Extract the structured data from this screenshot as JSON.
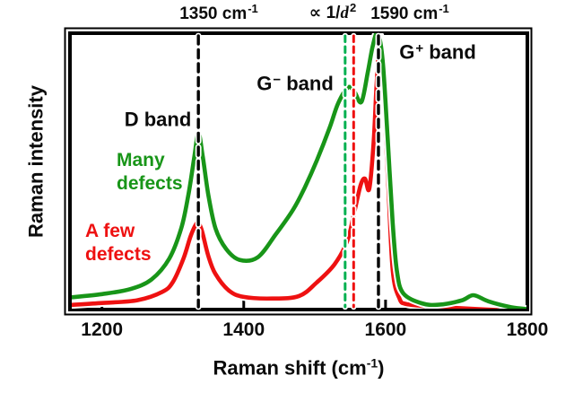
{
  "chart_data": {
    "type": "line",
    "title": "",
    "xlabel": "Raman shift (cm⁻¹)",
    "ylabel": "Raman intensity",
    "xlim": [
      1153,
      1800
    ],
    "ylim": [
      0,
      1
    ],
    "x_ticks": [
      1200,
      1400,
      1600,
      1800
    ],
    "x_tick_labels": [
      "1200",
      "1400",
      "1600",
      "1800"
    ],
    "y_ticks": [],
    "grid": false,
    "legend_position": "none (inline colored annotations)",
    "series": [
      {
        "name": "A few defects",
        "color": "#ee1111",
        "points": [
          [
            1155,
            0.023
          ],
          [
            1200,
            0.03
          ],
          [
            1250,
            0.04
          ],
          [
            1285,
            0.07
          ],
          [
            1300,
            0.105
          ],
          [
            1315,
            0.19
          ],
          [
            1325,
            0.27
          ],
          [
            1332,
            0.31
          ],
          [
            1336,
            0.318
          ],
          [
            1341,
            0.29
          ],
          [
            1350,
            0.2
          ],
          [
            1360,
            0.135
          ],
          [
            1379,
            0.075
          ],
          [
            1400,
            0.052
          ],
          [
            1440,
            0.046
          ],
          [
            1478,
            0.055
          ],
          [
            1503,
            0.104
          ],
          [
            1528,
            0.169
          ],
          [
            1546,
            0.253
          ],
          [
            1556,
            0.357
          ],
          [
            1565,
            0.455
          ],
          [
            1571,
            0.477
          ],
          [
            1577,
            0.44
          ],
          [
            1583,
            0.6
          ],
          [
            1587,
            0.8
          ],
          [
            1591,
            0.96
          ],
          [
            1593,
            0.985
          ],
          [
            1596,
            0.88
          ],
          [
            1600,
            0.65
          ],
          [
            1604,
            0.45
          ],
          [
            1610,
            0.15
          ],
          [
            1619,
            0.05
          ],
          [
            1632,
            0.025
          ],
          [
            1688,
            0.014
          ],
          [
            1764,
            0.004
          ],
          [
            1800,
            0.002
          ]
        ]
      },
      {
        "name": "Many defects",
        "color": "#189518",
        "points": [
          [
            1155,
            0.05
          ],
          [
            1200,
            0.062
          ],
          [
            1240,
            0.08
          ],
          [
            1270,
            0.115
          ],
          [
            1295,
            0.19
          ],
          [
            1312,
            0.3
          ],
          [
            1322,
            0.42
          ],
          [
            1330,
            0.55
          ],
          [
            1336,
            0.64
          ],
          [
            1342,
            0.56
          ],
          [
            1350,
            0.42
          ],
          [
            1360,
            0.3
          ],
          [
            1375,
            0.225
          ],
          [
            1394,
            0.185
          ],
          [
            1420,
            0.195
          ],
          [
            1445,
            0.276
          ],
          [
            1470,
            0.367
          ],
          [
            1486,
            0.445
          ],
          [
            1503,
            0.542
          ],
          [
            1521,
            0.659
          ],
          [
            1533,
            0.747
          ],
          [
            1547,
            0.805
          ],
          [
            1556,
            0.79
          ],
          [
            1566,
            0.753
          ],
          [
            1575,
            0.86
          ],
          [
            1582,
            0.955
          ],
          [
            1589,
            1.0
          ],
          [
            1596,
            0.9
          ],
          [
            1603,
            0.62
          ],
          [
            1610,
            0.32
          ],
          [
            1616,
            0.146
          ],
          [
            1625,
            0.065
          ],
          [
            1651,
            0.029
          ],
          [
            1675,
            0.024
          ],
          [
            1707,
            0.039
          ],
          [
            1724,
            0.058
          ],
          [
            1745,
            0.036
          ],
          [
            1777,
            0.015
          ],
          [
            1800,
            0.008
          ]
        ]
      }
    ],
    "guides": [
      {
        "x": 1336,
        "style": "dashed",
        "color": "#000000",
        "label": "1350 cm⁻¹"
      },
      {
        "x": 1543,
        "style": "dashed",
        "color": "#00b050",
        "label": ""
      },
      {
        "x": 1555,
        "style": "dashed",
        "color": "#ee1111",
        "label": ""
      },
      {
        "x": 1590,
        "style": "dashed",
        "color": "#000000",
        "label": "1590 cm⁻¹"
      }
    ]
  },
  "annotations": {
    "peak_1350": {
      "base": "1350 cm",
      "sup": "-1"
    },
    "prop_rel": {
      "pre": "∝ 1/",
      "var": "d",
      "sup": "2"
    },
    "peak_1590": {
      "base": "1590 cm",
      "sup": "-1"
    },
    "d_band": "D band",
    "g_minus": {
      "base": "G",
      "sup": "−",
      "rest": " band"
    },
    "g_plus": {
      "base": "G",
      "sup": "+",
      "rest": " band"
    },
    "many_defects": {
      "line1": "Many",
      "line2": "defects"
    },
    "few_defects": {
      "line1": "A few",
      "line2": "defects"
    },
    "y_axis": "Raman intensity",
    "x_axis": {
      "base": "Raman shift (cm",
      "sup": "-1",
      "close": ")"
    }
  },
  "colors": {
    "curve_many_defects": "#189518",
    "curve_few_defects": "#ee1111",
    "guide_green": "#00b050",
    "guide_red": "#ee1111",
    "axis_frame": "#000000",
    "text": "#0b0b0b"
  }
}
